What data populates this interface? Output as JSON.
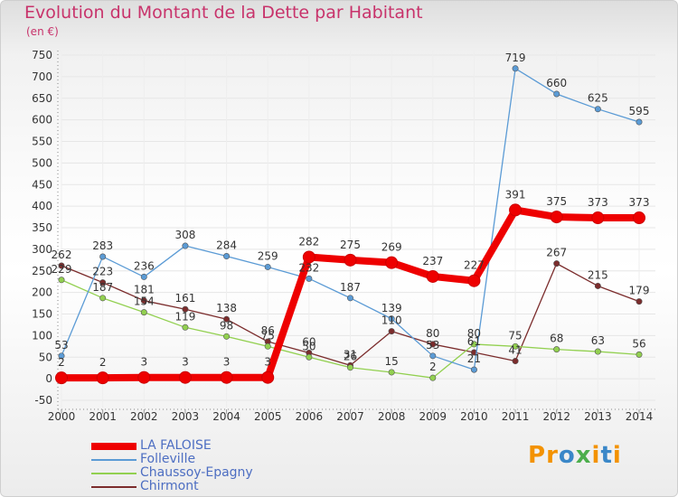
{
  "header": {
    "title": "Evolution du Montant de la Dette par Habitant",
    "unit": "(en €)"
  },
  "logo": {
    "text": "Proxiti",
    "colors": [
      "#f39200",
      "#f39200",
      "#3a87c8",
      "#4cae4c",
      "#f39200",
      "#3a87c8",
      "#f39200"
    ]
  },
  "chart_data": {
    "type": "line",
    "x": [
      "2000",
      "2001",
      "2002",
      "2003",
      "2004",
      "2005",
      "2006",
      "2007",
      "2008",
      "2009",
      "2010",
      "2011",
      "2012",
      "2013",
      "2014"
    ],
    "ylim": [
      -50,
      750
    ],
    "yticks": [
      "750",
      "700",
      "650",
      "600",
      "550",
      "500",
      "450",
      "400",
      "350",
      "300",
      "250",
      "200",
      "150",
      "100",
      "50",
      "0",
      "-50"
    ],
    "grid": true,
    "legend_position": "bottom-left",
    "series": [
      {
        "name": "LA FALOISE",
        "color": "#ee0000",
        "values": [
          2,
          2,
          3,
          3,
          3,
          3,
          282,
          275,
          269,
          237,
          227,
          391,
          375,
          373,
          373
        ],
        "labels": [
          "2",
          "2",
          "3",
          "3",
          "3",
          "3",
          "282",
          "275",
          "269",
          "237",
          "227",
          "391",
          "375",
          "373",
          "373"
        ]
      },
      {
        "name": "Folleville",
        "color": "#5b9bd5",
        "values": [
          53,
          283,
          236,
          308,
          284,
          259,
          232,
          187,
          139,
          53,
          21,
          719,
          660,
          625,
          595
        ],
        "labels": [
          "53",
          "283",
          "236",
          "308",
          "284",
          "259",
          "232",
          "187",
          "139",
          "53",
          "21",
          "719",
          "660",
          "625",
          "595"
        ]
      },
      {
        "name": "Chaussoy-Epagny",
        "color": "#92d050",
        "values": [
          229,
          187,
          154,
          119,
          98,
          75,
          50,
          26,
          15,
          2,
          80,
          75,
          68,
          63,
          56
        ],
        "labels": [
          "229",
          "187",
          "154",
          "119",
          "98",
          "75",
          "50",
          "26",
          "15",
          "2",
          "80",
          "75",
          "68",
          "63",
          "56"
        ]
      },
      {
        "name": "Chirmont",
        "color": "#7b2c2c",
        "values": [
          262,
          223,
          181,
          161,
          138,
          86,
          60,
          31,
          110,
          80,
          61,
          41,
          267,
          215,
          179
        ],
        "labels": [
          "262",
          "223",
          "181",
          "161",
          "138",
          "86",
          "60",
          "31",
          "110",
          "80",
          "61",
          "41",
          "267",
          "215",
          "179"
        ]
      }
    ]
  }
}
